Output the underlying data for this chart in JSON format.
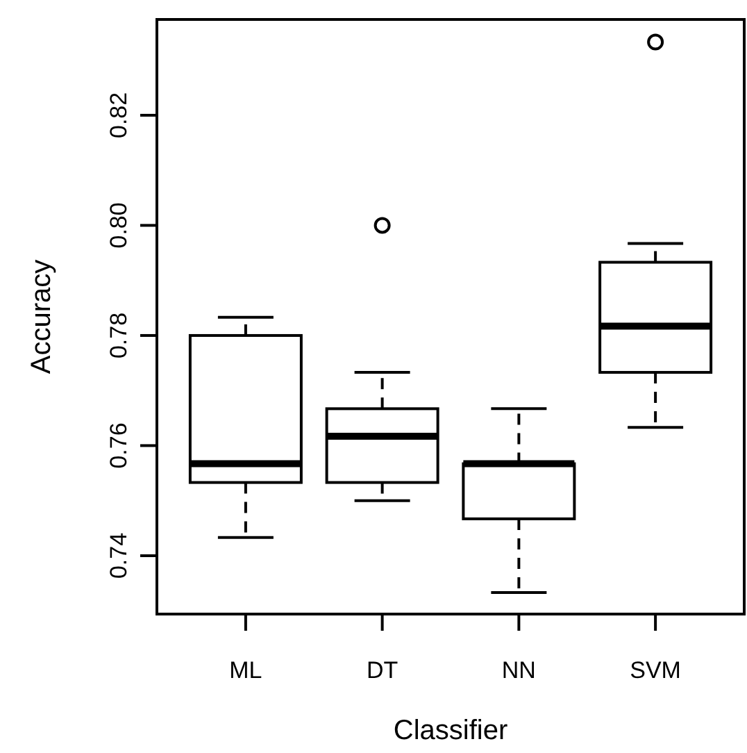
{
  "chart_data": {
    "type": "box",
    "xlabel": "Classifier",
    "ylabel": "Accuracy",
    "categories": [
      "ML",
      "DT",
      "NN",
      "SVM"
    ],
    "boxes": [
      {
        "low": 0.7433,
        "q1": 0.7533,
        "median": 0.7567,
        "q3": 0.78,
        "high": 0.7833
      },
      {
        "low": 0.75,
        "q1": 0.7533,
        "median": 0.7617,
        "q3": 0.7667,
        "high": 0.7733,
        "outliers": [
          0.8
        ]
      },
      {
        "low": 0.7333,
        "q1": 0.7467,
        "median": 0.7567,
        "q3": 0.7567,
        "high": 0.7667
      },
      {
        "low": 0.7633,
        "q1": 0.7733,
        "median": 0.7817,
        "q3": 0.7933,
        "high": 0.7967,
        "outliers": [
          0.8333
        ]
      }
    ],
    "ylim": [
      0.7294,
      0.8374
    ],
    "yticks": [
      {
        "value": 0.74,
        "label": "0.74"
      },
      {
        "value": 0.76,
        "label": "0.76"
      },
      {
        "value": 0.78,
        "label": "0.78"
      },
      {
        "value": 0.8,
        "label": "0.80"
      },
      {
        "value": 0.82,
        "label": "0.82"
      }
    ],
    "grid": false
  }
}
